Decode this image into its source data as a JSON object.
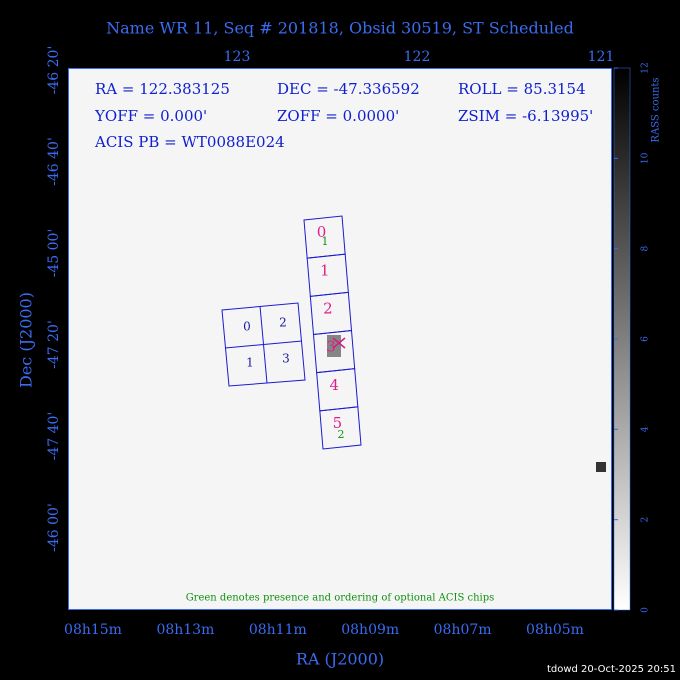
{
  "header": {
    "title": "Name WR 11, Seq # 201818, Obsid 30519, ST Scheduled"
  },
  "info": {
    "ra": "RA = 122.383125",
    "dec": "DEC = -47.336592",
    "roll": "ROLL = 85.3154",
    "yoff": "YOFF =   0.000'",
    "zoff": "ZOFF =  0.0000'",
    "zsim": "ZSIM = -6.13995'",
    "acis_pb": "ACIS PB = WT0088E024"
  },
  "axes": {
    "top_ticks": [
      "123",
      "122",
      "121"
    ],
    "left_ticks": [
      "-46 20'",
      "-46 40'",
      "-45 00'",
      "-47 20'",
      "-47 40'",
      "-46 00'"
    ],
    "bottom_ticks": [
      "08h15m",
      "08h13m",
      "08h11m",
      "08h09m",
      "08h07m",
      "08h05m"
    ],
    "x_title": "RA (J2000)",
    "y_title": "Dec (J2000)"
  },
  "colorbar": {
    "label": "RASS counts",
    "ticks": [
      0,
      2,
      4,
      6,
      8,
      10,
      12
    ]
  },
  "chips": {
    "acis_i": [
      "0",
      "2",
      "1",
      "3"
    ],
    "acis_s": [
      "0",
      "1",
      "2",
      "3",
      "4",
      "5"
    ],
    "optional": [
      "1",
      "2"
    ]
  },
  "note": "Green denotes presence and ordering of optional ACIS chips",
  "footer": "tdowd 20-Oct-2025 20:51"
}
